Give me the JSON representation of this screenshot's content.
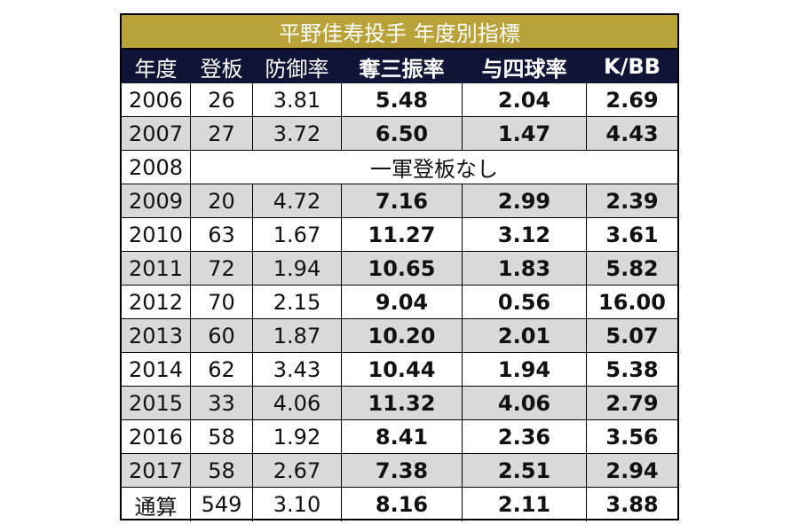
{
  "title": "平野佳寿投手 年度別指標",
  "headers": [
    "年度",
    "登板",
    "防御率",
    "奪三振率",
    "与四球率",
    "K/BB"
  ],
  "rows": [
    [
      "2006",
      "26",
      "3.81",
      "5.48",
      "2.04",
      "2.69"
    ],
    [
      "2007",
      "27",
      "3.72",
      "6.50",
      "1.47",
      "4.43"
    ],
    [
      "2008",
      "一軍登板なし"
    ],
    [
      "2009",
      "20",
      "4.72",
      "7.16",
      "2.99",
      "2.39"
    ],
    [
      "2010",
      "63",
      "1.67",
      "11.27",
      "3.12",
      "3.61"
    ],
    [
      "2011",
      "72",
      "1.94",
      "10.65",
      "1.83",
      "5.82"
    ],
    [
      "2012",
      "70",
      "2.15",
      "9.04",
      "0.56",
      "16.00"
    ],
    [
      "2013",
      "60",
      "1.87",
      "10.20",
      "2.01",
      "5.07"
    ],
    [
      "2014",
      "62",
      "3.43",
      "10.44",
      "1.94",
      "5.38"
    ],
    [
      "2015",
      "33",
      "4.06",
      "11.32",
      "4.06",
      "2.79"
    ],
    [
      "2016",
      "58",
      "1.92",
      "8.41",
      "2.36",
      "3.56"
    ],
    [
      "2017",
      "58",
      "2.67",
      "7.38",
      "2.51",
      "2.94"
    ],
    [
      "通算",
      "549",
      "3.10",
      "8.16",
      "2.11",
      "3.88"
    ]
  ],
  "colors": {
    "title_bg": "#b8a239",
    "header_bg": "#101436",
    "alt_row_bg": "#d9d9d9"
  }
}
